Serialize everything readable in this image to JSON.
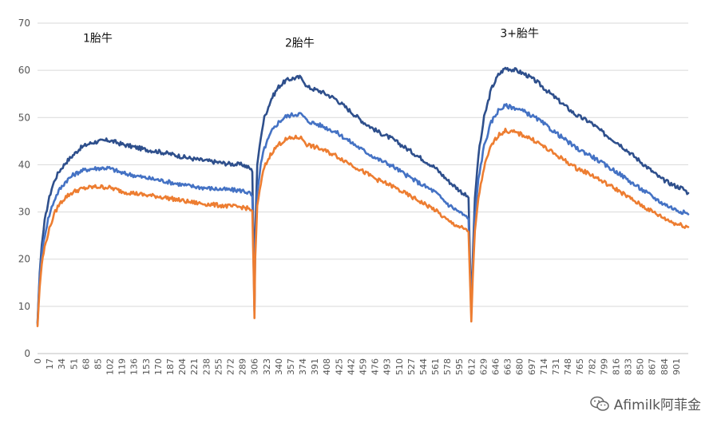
{
  "chart_data": {
    "type": "line",
    "ylim": [
      0,
      70
    ],
    "yticks": [
      0,
      10,
      20,
      30,
      40,
      50,
      60,
      70
    ],
    "xlim": [
      0,
      918
    ],
    "xticks": [
      0,
      17,
      34,
      51,
      68,
      85,
      102,
      119,
      136,
      153,
      170,
      187,
      204,
      221,
      238,
      255,
      272,
      289,
      306,
      323,
      340,
      357,
      374,
      391,
      408,
      425,
      442,
      459,
      476,
      493,
      510,
      527,
      544,
      561,
      578,
      595,
      612,
      629,
      646,
      663,
      680,
      697,
      714,
      731,
      748,
      765,
      782,
      799,
      816,
      833,
      850,
      867,
      884,
      901
    ],
    "grid": true,
    "annotations": [
      {
        "text": "1胎牛",
        "x": 85,
        "y": 66
      },
      {
        "text": "2胎牛",
        "x": 370,
        "y": 65
      },
      {
        "text": "3+胎牛",
        "x": 680,
        "y": 67
      }
    ],
    "series": [
      {
        "color": "#2E4F8C",
        "points": [
          [
            0,
            6.5
          ],
          [
            3,
            17
          ],
          [
            6,
            23
          ],
          [
            10,
            28
          ],
          [
            15,
            32
          ],
          [
            20,
            35
          ],
          [
            25,
            37
          ],
          [
            30,
            38.5
          ],
          [
            40,
            40.5
          ],
          [
            50,
            42
          ],
          [
            60,
            43.5
          ],
          [
            70,
            44.3
          ],
          [
            80,
            44.8
          ],
          [
            90,
            45
          ],
          [
            100,
            45.2
          ],
          [
            110,
            44.8
          ],
          [
            120,
            44.3
          ],
          [
            135,
            43.8
          ],
          [
            150,
            43.3
          ],
          [
            170,
            42.8
          ],
          [
            190,
            42.2
          ],
          [
            210,
            41.5
          ],
          [
            230,
            41
          ],
          [
            250,
            40.6
          ],
          [
            270,
            40.2
          ],
          [
            290,
            40
          ],
          [
            300,
            39.2
          ],
          [
            303,
            38.5
          ],
          [
            305,
            20
          ],
          [
            306,
            10
          ],
          [
            307,
            25
          ],
          [
            310,
            40
          ],
          [
            315,
            46
          ],
          [
            320,
            50
          ],
          [
            330,
            54
          ],
          [
            340,
            56.5
          ],
          [
            350,
            57.8
          ],
          [
            360,
            58.3
          ],
          [
            370,
            58.5
          ],
          [
            375,
            58
          ],
          [
            380,
            56.5
          ],
          [
            400,
            55.5
          ],
          [
            420,
            54
          ],
          [
            440,
            51.5
          ],
          [
            460,
            49
          ],
          [
            480,
            47
          ],
          [
            500,
            45.5
          ],
          [
            520,
            43.5
          ],
          [
            540,
            41.5
          ],
          [
            560,
            39.5
          ],
          [
            580,
            36.5
          ],
          [
            600,
            34
          ],
          [
            608,
            33
          ],
          [
            610,
            20
          ],
          [
            612,
            9
          ],
          [
            614,
            20
          ],
          [
            617,
            33
          ],
          [
            622,
            42
          ],
          [
            630,
            50
          ],
          [
            640,
            56
          ],
          [
            650,
            59
          ],
          [
            660,
            60.5
          ],
          [
            675,
            60
          ],
          [
            690,
            59
          ],
          [
            705,
            57.5
          ],
          [
            720,
            55.5
          ],
          [
            740,
            53
          ],
          [
            760,
            50.5
          ],
          [
            780,
            49
          ],
          [
            800,
            46.5
          ],
          [
            820,
            44.5
          ],
          [
            840,
            42
          ],
          [
            860,
            39.5
          ],
          [
            880,
            37
          ],
          [
            900,
            35.5
          ],
          [
            910,
            35
          ],
          [
            918,
            34
          ]
        ]
      },
      {
        "color": "#4472C4",
        "points": [
          [
            0,
            6.2
          ],
          [
            3,
            16
          ],
          [
            6,
            21
          ],
          [
            10,
            25
          ],
          [
            15,
            28.5
          ],
          [
            20,
            31
          ],
          [
            25,
            33
          ],
          [
            30,
            34.5
          ],
          [
            40,
            36.5
          ],
          [
            50,
            37.8
          ],
          [
            60,
            38.6
          ],
          [
            70,
            39
          ],
          [
            80,
            39.2
          ],
          [
            90,
            39.3
          ],
          [
            100,
            39.3
          ],
          [
            110,
            38.8
          ],
          [
            120,
            38.2
          ],
          [
            135,
            37.8
          ],
          [
            150,
            37.3
          ],
          [
            170,
            36.8
          ],
          [
            190,
            36.2
          ],
          [
            210,
            35.6
          ],
          [
            230,
            35.2
          ],
          [
            250,
            34.9
          ],
          [
            270,
            34.7
          ],
          [
            290,
            34.5
          ],
          [
            300,
            33.9
          ],
          [
            303,
            33.3
          ],
          [
            305,
            18
          ],
          [
            306,
            9
          ],
          [
            307,
            22
          ],
          [
            310,
            34
          ],
          [
            315,
            40
          ],
          [
            320,
            43.5
          ],
          [
            330,
            47
          ],
          [
            340,
            49
          ],
          [
            350,
            50.2
          ],
          [
            360,
            50.6
          ],
          [
            370,
            50.8
          ],
          [
            375,
            50.3
          ],
          [
            380,
            49.3
          ],
          [
            400,
            48.3
          ],
          [
            420,
            47
          ],
          [
            440,
            45
          ],
          [
            460,
            43
          ],
          [
            480,
            41.2
          ],
          [
            500,
            39.8
          ],
          [
            520,
            37.8
          ],
          [
            540,
            36
          ],
          [
            560,
            34.3
          ],
          [
            580,
            31.5
          ],
          [
            600,
            29.5
          ],
          [
            608,
            28.5
          ],
          [
            610,
            18
          ],
          [
            612,
            8.5
          ],
          [
            614,
            18
          ],
          [
            617,
            29
          ],
          [
            622,
            37
          ],
          [
            630,
            44
          ],
          [
            640,
            49
          ],
          [
            650,
            51.5
          ],
          [
            660,
            52.5
          ],
          [
            675,
            52
          ],
          [
            690,
            51
          ],
          [
            705,
            49.7
          ],
          [
            720,
            48
          ],
          [
            740,
            45.8
          ],
          [
            760,
            43.5
          ],
          [
            780,
            42
          ],
          [
            800,
            40
          ],
          [
            820,
            38.2
          ],
          [
            840,
            36
          ],
          [
            860,
            34
          ],
          [
            880,
            32
          ],
          [
            900,
            30.5
          ],
          [
            910,
            30
          ],
          [
            918,
            29.5
          ]
        ]
      },
      {
        "color": "#ED7D31",
        "points": [
          [
            0,
            5.8
          ],
          [
            3,
            14
          ],
          [
            6,
            19
          ],
          [
            10,
            22.5
          ],
          [
            15,
            25.5
          ],
          [
            20,
            28
          ],
          [
            25,
            30
          ],
          [
            30,
            31.5
          ],
          [
            40,
            33.2
          ],
          [
            50,
            34.2
          ],
          [
            60,
            34.8
          ],
          [
            70,
            35.1
          ],
          [
            80,
            35.3
          ],
          [
            90,
            35.3
          ],
          [
            100,
            35.2
          ],
          [
            110,
            34.8
          ],
          [
            120,
            34.3
          ],
          [
            135,
            34
          ],
          [
            150,
            33.6
          ],
          [
            170,
            33.3
          ],
          [
            190,
            32.8
          ],
          [
            210,
            32.2
          ],
          [
            230,
            31.8
          ],
          [
            250,
            31.5
          ],
          [
            270,
            31.2
          ],
          [
            290,
            31
          ],
          [
            300,
            30.6
          ],
          [
            303,
            30.2
          ],
          [
            305,
            16
          ],
          [
            306,
            7.5
          ],
          [
            307,
            20
          ],
          [
            310,
            31
          ],
          [
            315,
            36
          ],
          [
            320,
            39.5
          ],
          [
            330,
            42.5
          ],
          [
            340,
            44.3
          ],
          [
            350,
            45.3
          ],
          [
            360,
            45.7
          ],
          [
            370,
            45.8
          ],
          [
            375,
            45.3
          ],
          [
            380,
            44.3
          ],
          [
            400,
            43.3
          ],
          [
            420,
            42
          ],
          [
            440,
            40.3
          ],
          [
            460,
            38.5
          ],
          [
            480,
            36.8
          ],
          [
            500,
            35.5
          ],
          [
            520,
            33.8
          ],
          [
            540,
            32.2
          ],
          [
            560,
            30.5
          ],
          [
            580,
            28
          ],
          [
            600,
            26.5
          ],
          [
            608,
            25.8
          ],
          [
            610,
            16
          ],
          [
            612,
            6.8
          ],
          [
            614,
            16
          ],
          [
            617,
            26
          ],
          [
            622,
            33
          ],
          [
            630,
            39.5
          ],
          [
            640,
            44
          ],
          [
            650,
            46.3
          ],
          [
            660,
            47.2
          ],
          [
            675,
            46.8
          ],
          [
            690,
            46
          ],
          [
            705,
            44.8
          ],
          [
            720,
            43.2
          ],
          [
            740,
            41.3
          ],
          [
            760,
            39.3
          ],
          [
            780,
            38
          ],
          [
            800,
            36.2
          ],
          [
            820,
            34.5
          ],
          [
            840,
            32.5
          ],
          [
            860,
            30.7
          ],
          [
            880,
            29
          ],
          [
            900,
            27.5
          ],
          [
            910,
            27.2
          ],
          [
            918,
            26.8
          ]
        ]
      }
    ]
  },
  "watermark": {
    "text": "Afimilk阿菲金",
    "icon": "wechat-icon"
  }
}
